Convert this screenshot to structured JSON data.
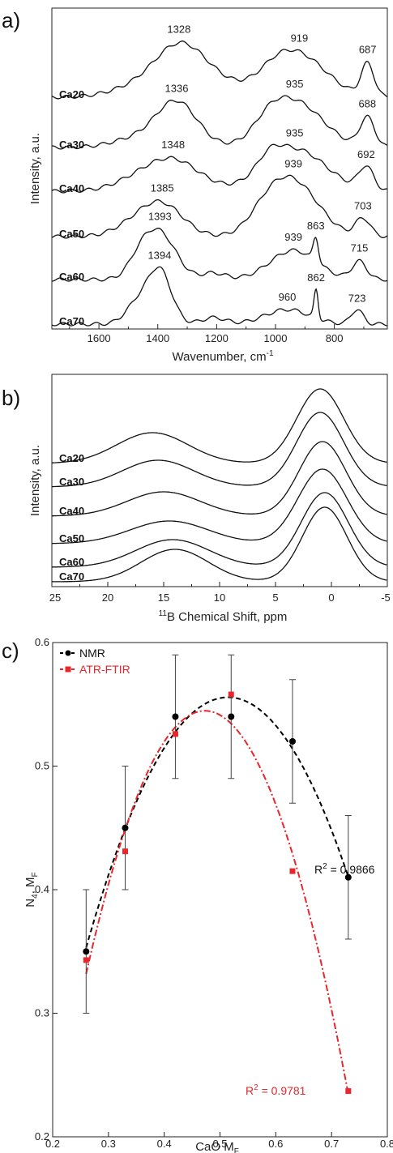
{
  "chart_data": [
    {
      "type": "line",
      "panel_label": "a)",
      "xlabel": "Wavenumber, cm",
      "xlabel_sup": "-1",
      "ylabel": "Intensity, a.u.",
      "xlim": [
        1760,
        620
      ],
      "x_ticks": [
        1600,
        1400,
        1200,
        1000,
        800
      ],
      "series": [
        {
          "name": "Ca20",
          "peaks": [
            1328,
            919,
            687
          ]
        },
        {
          "name": "Ca30",
          "peaks": [
            1336,
            935,
            688
          ]
        },
        {
          "name": "Ca40",
          "peaks": [
            1348,
            935,
            692
          ]
        },
        {
          "name": "Ca50",
          "peaks": [
            1385,
            939,
            703
          ]
        },
        {
          "name": "Ca60",
          "peaks": [
            1393,
            939,
            863,
            715
          ]
        },
        {
          "name": "Ca70",
          "peaks": [
            1394,
            960,
            862,
            723
          ]
        }
      ],
      "peak_labels": [
        [
          "1328",
          "919",
          "687"
        ],
        [
          "1336",
          "935",
          "688"
        ],
        [
          "1348",
          "935",
          "692"
        ],
        [
          "1385",
          "939",
          "703"
        ],
        [
          "1393",
          "939",
          "863",
          "715"
        ],
        [
          "1394",
          "960",
          "862",
          "723"
        ]
      ]
    },
    {
      "type": "line",
      "panel_label": "b)",
      "xlabel_sup": "11",
      "xlabel": "B Chemical Shift, ppm",
      "ylabel": "Intensity, a.u.",
      "xlim": [
        25,
        -5
      ],
      "x_ticks": [
        25,
        20,
        15,
        10,
        5,
        0,
        -5
      ],
      "series": [
        {
          "name": "Ca20",
          "peaks": [
            16.0,
            1.0
          ]
        },
        {
          "name": "Ca30",
          "peaks": [
            15.5,
            1.0
          ]
        },
        {
          "name": "Ca40",
          "peaks": [
            15.0,
            0.8
          ]
        },
        {
          "name": "Ca50",
          "peaks": [
            14.5,
            0.8
          ]
        },
        {
          "name": "Ca60",
          "peaks": [
            14.2,
            0.6
          ]
        },
        {
          "name": "Ca70",
          "peaks": [
            14.0,
            0.6
          ]
        }
      ]
    },
    {
      "type": "scatter",
      "panel_label": "c)",
      "xlabel": "CaO  M",
      "xlabel_sub": "F",
      "ylabel": "N",
      "ylabel_sub1": "4",
      "ylabel_rest": ",  M",
      "ylabel_sub2": "F",
      "xlim": [
        0.2,
        0.8
      ],
      "ylim": [
        0.2,
        0.6
      ],
      "x_ticks": [
        "0.2",
        "0.3",
        "0.4",
        "0.5",
        "0.6",
        "0.7",
        "0.8"
      ],
      "y_ticks": [
        "0.2",
        "0.3",
        "0.4",
        "0.5",
        "0.6"
      ],
      "legend": "top-left",
      "series": [
        {
          "name": "NMR",
          "color": "#000000",
          "x": [
            0.26,
            0.33,
            0.42,
            0.52,
            0.63,
            0.73
          ],
          "y": [
            0.35,
            0.45,
            0.54,
            0.54,
            0.52,
            0.41
          ],
          "error": [
            0.05,
            0.05,
            0.05,
            0.05,
            0.05,
            0.05
          ],
          "fit_label": "R",
          "fit_sup": "2",
          "fit_value": " = 0.9866"
        },
        {
          "name": "ATR-FTIR",
          "color": "#e8262b",
          "x": [
            0.26,
            0.33,
            0.42,
            0.52,
            0.63,
            0.73
          ],
          "y": [
            0.343,
            0.431,
            0.526,
            0.558,
            0.415,
            0.237
          ],
          "fit_label": "R",
          "fit_sup": "2",
          "fit_value": " = 0.9781"
        }
      ]
    }
  ]
}
